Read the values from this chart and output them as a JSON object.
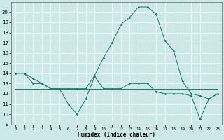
{
  "xlabel": "Humidex (Indice chaleur)",
  "background_color": "#cce8e8",
  "grid_color": "#ffffff",
  "line_color": "#1a7a6e",
  "xlim": [
    -0.5,
    23.5
  ],
  "ylim": [
    9,
    21
  ],
  "x_ticks": [
    0,
    1,
    2,
    3,
    4,
    5,
    6,
    7,
    8,
    9,
    10,
    11,
    12,
    13,
    14,
    15,
    16,
    17,
    18,
    19,
    20,
    21,
    22,
    23
  ],
  "y_ticks": [
    9,
    10,
    11,
    12,
    13,
    14,
    15,
    16,
    17,
    18,
    19,
    20
  ],
  "line1_x": [
    0,
    1,
    2,
    3,
    4,
    5,
    6,
    7,
    8,
    9,
    10,
    11,
    12,
    13,
    14,
    15,
    16,
    17,
    18,
    19,
    20,
    21,
    22,
    23
  ],
  "line1_y": [
    14,
    14,
    13,
    13,
    12.5,
    12.5,
    11,
    10,
    11.5,
    13.7,
    12.5,
    12.5,
    12.5,
    13,
    13,
    13,
    12.2,
    12,
    12,
    12,
    11.8,
    9.5,
    11.5,
    12
  ],
  "line2_x": [
    0,
    1,
    2,
    3,
    4,
    5,
    6,
    7,
    8,
    9,
    10,
    11,
    12,
    13,
    14,
    15,
    16,
    17,
    18,
    19,
    20,
    21,
    22,
    23
  ],
  "line2_y": [
    14,
    14,
    13.5,
    13,
    12.5,
    12.5,
    12.5,
    12.5,
    12.5,
    13.8,
    15.5,
    17,
    18.8,
    19.5,
    20.5,
    20.5,
    19.8,
    17.2,
    16.2,
    13.2,
    12,
    11.8,
    11.5,
    12
  ],
  "line3_x": [
    0,
    23
  ],
  "line3_y": [
    12.5,
    12.5
  ]
}
